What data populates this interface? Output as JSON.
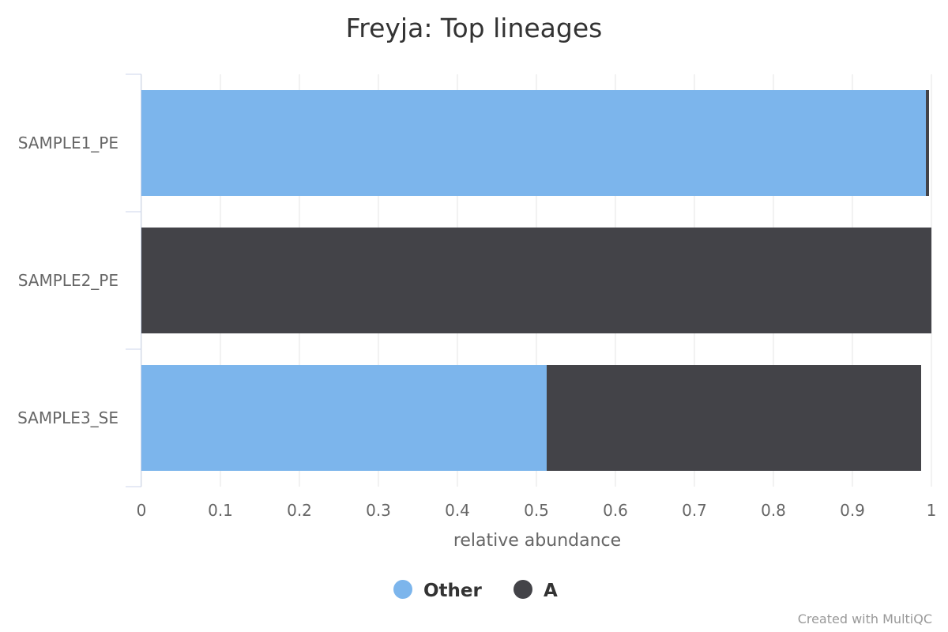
{
  "chart_data": {
    "type": "bar",
    "orientation": "horizontal",
    "stacked": true,
    "title": "Freyja: Top lineages",
    "categories": [
      "SAMPLE1_PE",
      "SAMPLE2_PE",
      "SAMPLE3_SE"
    ],
    "series": [
      {
        "name": "Other",
        "color": "#7cb5ec",
        "values": [
          0.993,
          0.0,
          0.513
        ]
      },
      {
        "name": "A",
        "color": "#434348",
        "values": [
          0.004,
          1.0,
          0.474
        ]
      }
    ],
    "xlabel": "relative abundance",
    "ylabel": "",
    "xlim": [
      0,
      1
    ],
    "xticks": [
      "0",
      "0.1",
      "0.2",
      "0.3",
      "0.4",
      "0.5",
      "0.6",
      "0.7",
      "0.8",
      "0.9",
      "1"
    ],
    "grid": true,
    "legend": "bottom-center"
  },
  "credits": "Created with MultiQC"
}
